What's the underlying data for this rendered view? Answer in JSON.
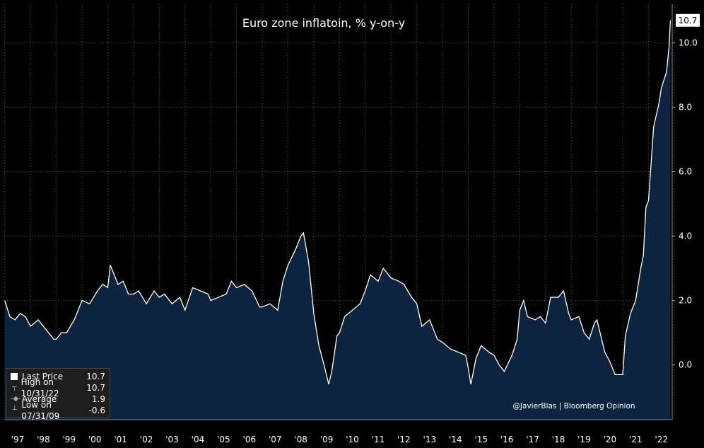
{
  "chart_data": {
    "type": "area",
    "title": "Euro zone inflatoin, % y-on-y",
    "y_ticks": [
      "10.0",
      "8.0",
      "6.0",
      "4.0",
      "2.0",
      "0.0"
    ],
    "y_tick_values": [
      10,
      8,
      6,
      4,
      2,
      0
    ],
    "ylim": [
      -1.7,
      11.2
    ],
    "x_ticks": [
      "'97",
      "'98",
      "'99",
      "'00",
      "'01",
      "'02",
      "'03",
      "'04",
      "'05",
      "'06",
      "'07",
      "'08",
      "'09",
      "'10",
      "'11",
      "'12",
      "'13",
      "'14",
      "'15",
      "'16",
      "'17",
      "'18",
      "'19",
      "'20",
      "'21",
      "'22"
    ],
    "xlim": [
      1996.98,
      2022.92
    ],
    "grid": true,
    "series": [
      {
        "color": "#ffffff",
        "fill": "#0c2440",
        "points": [
          [
            1997.0,
            2.0
          ],
          [
            1997.2,
            1.5
          ],
          [
            1997.4,
            1.4
          ],
          [
            1997.6,
            1.6
          ],
          [
            1997.8,
            1.5
          ],
          [
            1998.0,
            1.2
          ],
          [
            1998.3,
            1.4
          ],
          [
            1998.6,
            1.1
          ],
          [
            1998.9,
            0.8
          ],
          [
            1999.0,
            0.8
          ],
          [
            1999.2,
            1.0
          ],
          [
            1999.4,
            1.0
          ],
          [
            1999.7,
            1.4
          ],
          [
            2000.0,
            2.0
          ],
          [
            2000.3,
            1.9
          ],
          [
            2000.6,
            2.3
          ],
          [
            2000.8,
            2.5
          ],
          [
            2001.0,
            2.4
          ],
          [
            2001.1,
            3.1
          ],
          [
            2001.4,
            2.5
          ],
          [
            2001.6,
            2.6
          ],
          [
            2001.8,
            2.2
          ],
          [
            2002.0,
            2.2
          ],
          [
            2002.2,
            2.3
          ],
          [
            2002.5,
            1.9
          ],
          [
            2002.8,
            2.3
          ],
          [
            2003.0,
            2.1
          ],
          [
            2003.2,
            2.2
          ],
          [
            2003.5,
            1.9
          ],
          [
            2003.8,
            2.1
          ],
          [
            2004.0,
            1.7
          ],
          [
            2004.3,
            2.4
          ],
          [
            2004.6,
            2.3
          ],
          [
            2004.9,
            2.2
          ],
          [
            2005.0,
            2.0
          ],
          [
            2005.3,
            2.1
          ],
          [
            2005.6,
            2.2
          ],
          [
            2005.8,
            2.6
          ],
          [
            2006.0,
            2.4
          ],
          [
            2006.3,
            2.5
          ],
          [
            2006.6,
            2.3
          ],
          [
            2006.9,
            1.8
          ],
          [
            2007.0,
            1.8
          ],
          [
            2007.3,
            1.9
          ],
          [
            2007.6,
            1.7
          ],
          [
            2007.8,
            2.6
          ],
          [
            2008.0,
            3.1
          ],
          [
            2008.3,
            3.6
          ],
          [
            2008.5,
            4.0
          ],
          [
            2008.6,
            4.1
          ],
          [
            2008.8,
            3.2
          ],
          [
            2009.0,
            1.6
          ],
          [
            2009.2,
            0.6
          ],
          [
            2009.4,
            0.0
          ],
          [
            2009.58,
            -0.6
          ],
          [
            2009.7,
            -0.2
          ],
          [
            2009.9,
            0.9
          ],
          [
            2010.0,
            1.0
          ],
          [
            2010.2,
            1.5
          ],
          [
            2010.5,
            1.7
          ],
          [
            2010.8,
            1.9
          ],
          [
            2011.0,
            2.3
          ],
          [
            2011.2,
            2.8
          ],
          [
            2011.5,
            2.6
          ],
          [
            2011.7,
            3.0
          ],
          [
            2011.9,
            2.8
          ],
          [
            2012.0,
            2.7
          ],
          [
            2012.3,
            2.6
          ],
          [
            2012.5,
            2.5
          ],
          [
            2012.8,
            2.1
          ],
          [
            2013.0,
            1.9
          ],
          [
            2013.2,
            1.2
          ],
          [
            2013.5,
            1.4
          ],
          [
            2013.8,
            0.8
          ],
          [
            2014.0,
            0.7
          ],
          [
            2014.3,
            0.5
          ],
          [
            2014.6,
            0.4
          ],
          [
            2014.9,
            0.3
          ],
          [
            2015.0,
            -0.1
          ],
          [
            2015.1,
            -0.6
          ],
          [
            2015.3,
            0.2
          ],
          [
            2015.5,
            0.6
          ],
          [
            2015.8,
            0.4
          ],
          [
            2016.0,
            0.3
          ],
          [
            2016.2,
            0.0
          ],
          [
            2016.4,
            -0.2
          ],
          [
            2016.7,
            0.3
          ],
          [
            2016.9,
            0.8
          ],
          [
            2017.0,
            1.7
          ],
          [
            2017.15,
            2.0
          ],
          [
            2017.3,
            1.5
          ],
          [
            2017.6,
            1.4
          ],
          [
            2017.8,
            1.5
          ],
          [
            2018.0,
            1.3
          ],
          [
            2018.2,
            2.1
          ],
          [
            2018.5,
            2.1
          ],
          [
            2018.7,
            2.3
          ],
          [
            2018.9,
            1.6
          ],
          [
            2019.0,
            1.4
          ],
          [
            2019.3,
            1.5
          ],
          [
            2019.5,
            1.0
          ],
          [
            2019.7,
            0.8
          ],
          [
            2019.9,
            1.3
          ],
          [
            2020.0,
            1.4
          ],
          [
            2020.3,
            0.4
          ],
          [
            2020.5,
            0.1
          ],
          [
            2020.7,
            -0.3
          ],
          [
            2021.0,
            -0.3
          ],
          [
            2021.1,
            0.9
          ],
          [
            2021.3,
            1.6
          ],
          [
            2021.5,
            2.0
          ],
          [
            2021.7,
            3.0
          ],
          [
            2021.8,
            3.4
          ],
          [
            2021.9,
            4.9
          ],
          [
            2022.0,
            5.1
          ],
          [
            2022.2,
            7.4
          ],
          [
            2022.4,
            8.1
          ],
          [
            2022.5,
            8.6
          ],
          [
            2022.7,
            9.1
          ],
          [
            2022.8,
            9.9
          ],
          [
            2022.85,
            10.7
          ]
        ]
      }
    ],
    "last_value_label": "10.7",
    "legend": [
      {
        "icon": "square-icon",
        "label": "Last Price",
        "value": "10.7"
      },
      {
        "icon": "high-marker-icon",
        "label": "High on 10/31/22",
        "value": "10.7"
      },
      {
        "icon": "average-marker-icon",
        "label": "Average",
        "value": "1.9"
      },
      {
        "icon": "low-marker-icon",
        "label": "Low on 07/31/09",
        "value": "-0.6"
      }
    ],
    "credit": "@JavierBlas | Bloomberg Opinion"
  }
}
